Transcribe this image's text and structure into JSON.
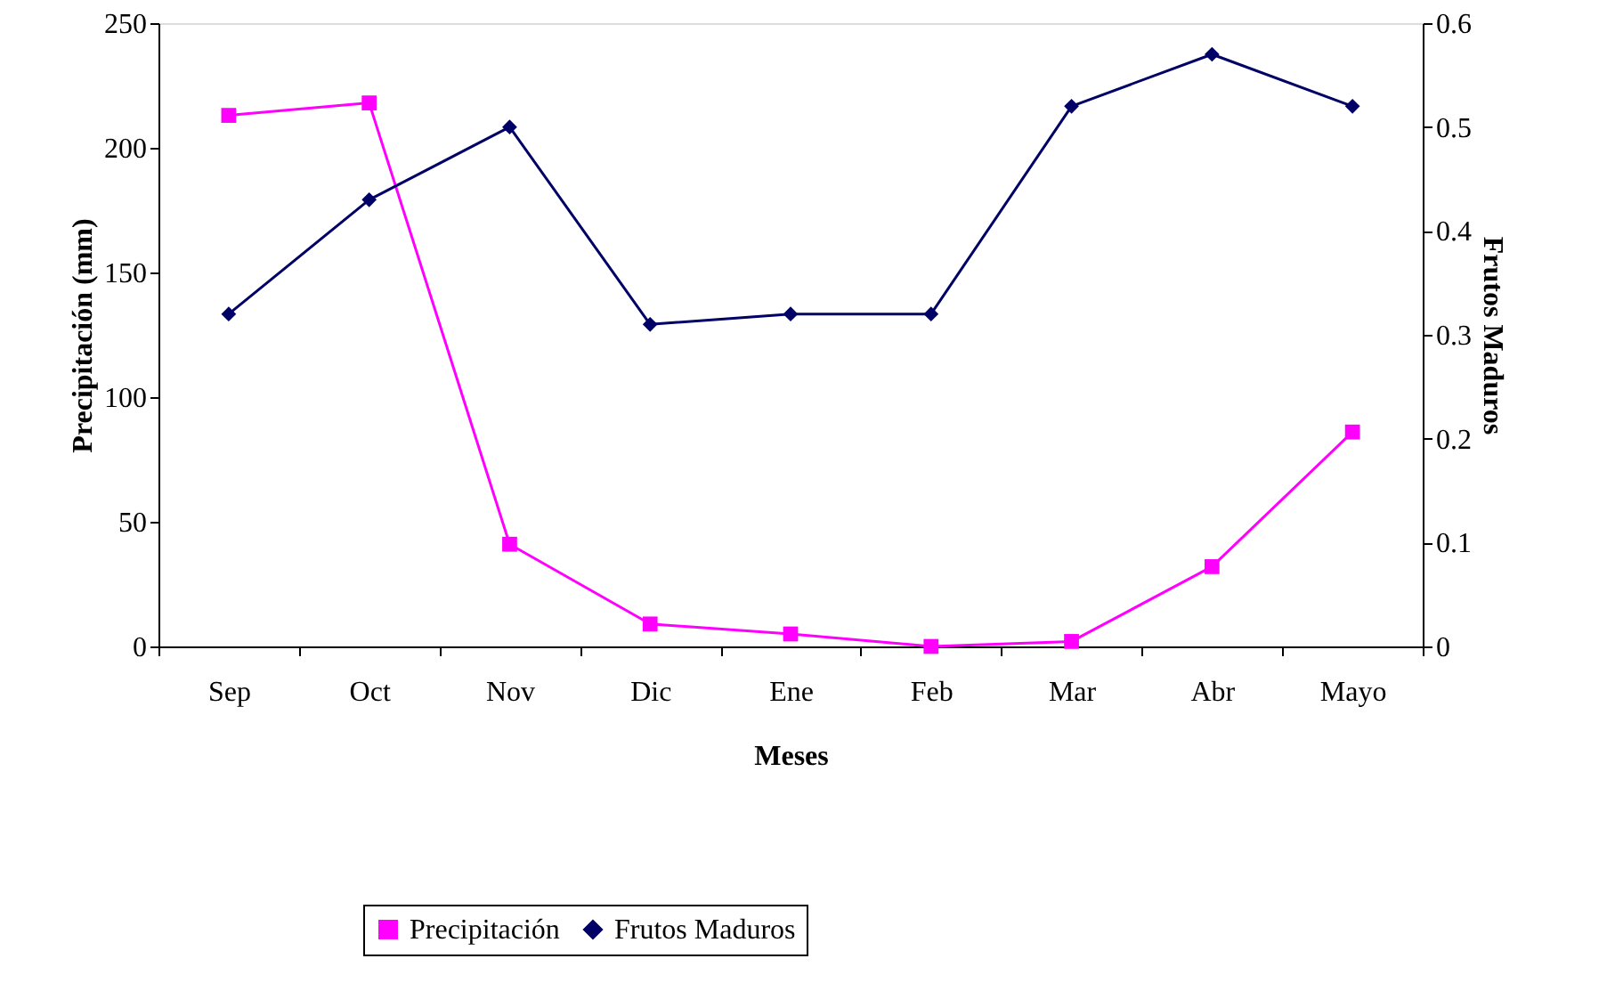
{
  "chart_data": {
    "type": "line",
    "xlabel": "Meses",
    "ylabel": "Precipitación (mm)",
    "y2label": "Frutos Maduros",
    "categories": [
      "Sep",
      "Oct",
      "Nov",
      "Dic",
      "Ene",
      "Feb",
      "Mar",
      "Abr",
      "Mayo"
    ],
    "series": [
      {
        "name": "Precipitación",
        "color": "#ff00ff",
        "marker": "square",
        "values": [
          213,
          218,
          41,
          9,
          5,
          0,
          2,
          32,
          86
        ]
      },
      {
        "name": "Frutos Maduros",
        "color": "#000066",
        "marker": "diamond",
        "axis": "y2",
        "values": [
          0.32,
          0.43,
          0.5,
          0.31,
          0.32,
          0.32,
          0.52,
          0.57,
          0.52
        ]
      }
    ],
    "ylim": [
      0,
      250
    ],
    "yticks": [
      0,
      50,
      100,
      150,
      200,
      250
    ],
    "y2lim": [
      0,
      0.6
    ],
    "y2ticks": [
      0,
      0.1,
      0.2,
      0.3,
      0.4,
      0.5,
      0.6
    ],
    "grid": false,
    "legend": "bottom"
  }
}
